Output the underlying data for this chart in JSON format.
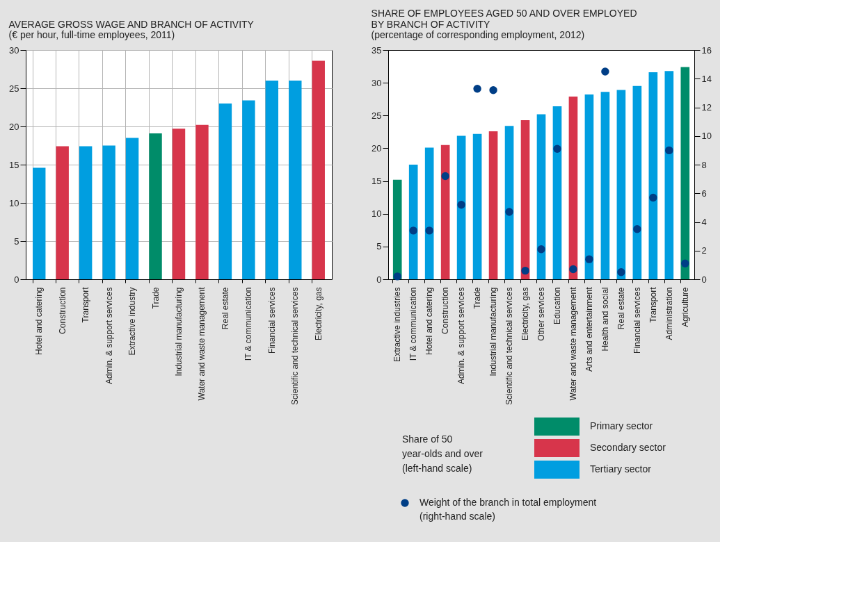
{
  "chart_data": [
    {
      "type": "bar",
      "title": "AVERAGE GROSS WAGE AND BRANCH OF ACTIVITY",
      "subtitle": "(€ per hour, full-time employees, 2011)",
      "categories": [
        "Hotel and catering",
        "Construction",
        "Transport",
        "Admin. & support services",
        "Extractive industry",
        "Trade",
        "Industrial manufacturing",
        "Water and waste management",
        "Real estate",
        "IT & communication",
        "Financial services",
        "Scientific and technical services",
        "Electricity, gas"
      ],
      "values": [
        14.6,
        17.4,
        17.4,
        17.5,
        18.5,
        19.1,
        19.7,
        20.2,
        23.0,
        23.4,
        26.0,
        26.0,
        28.6
      ],
      "colors": [
        "#009ee0",
        "#d7354b",
        "#009ee0",
        "#009ee0",
        "#009ee0",
        "#008c69",
        "#d7354b",
        "#d7354b",
        "#009ee0",
        "#009ee0",
        "#009ee0",
        "#009ee0",
        "#d7354b"
      ],
      "ylim": [
        0,
        30
      ],
      "yticks": [
        0,
        5,
        10,
        15,
        20,
        25,
        30
      ],
      "grid": true
    },
    {
      "type": "bar",
      "title": "SHARE OF EMPLOYEES AGED 50 AND OVER EMPLOYED BY BRANCH OF ACTIVITY",
      "subtitle": "(percentage of corresponding employment, 2012)",
      "categories": [
        "Extractive industries",
        "IT & communication",
        "Hotel and catering",
        "Construction",
        "Admin. & support services",
        "Trade",
        "Industrial manufacturing",
        "Scientific and technical services",
        "Electricity, gas",
        "Other services",
        "Education",
        "Water and waste management",
        "Arts and entertainment",
        "Health and social",
        "Real estate",
        "Financial services",
        "Transport",
        "Administration",
        "Agriculture"
      ],
      "legend_title": "Share of 50 year-olds and over (left-hand scale)",
      "series": [
        {
          "name": "Primary sector",
          "color": "#008c69",
          "values": [
            15.2,
            null,
            null,
            null,
            null,
            null,
            null,
            null,
            null,
            null,
            null,
            null,
            null,
            null,
            null,
            null,
            null,
            null,
            32.4
          ]
        },
        {
          "name": "Secondary sector",
          "color": "#d7354b",
          "values": [
            null,
            null,
            null,
            20.5,
            null,
            null,
            22.6,
            null,
            24.3,
            null,
            null,
            27.9,
            null,
            null,
            null,
            null,
            null,
            null,
            null
          ]
        },
        {
          "name": "Tertiary sector",
          "color": "#009ee0",
          "values": [
            null,
            17.5,
            20.1,
            null,
            21.9,
            22.2,
            null,
            23.4,
            null,
            25.2,
            26.4,
            null,
            28.2,
            28.6,
            28.9,
            29.5,
            31.6,
            31.8,
            null
          ]
        },
        {
          "name": "Weight of the branch in total employment (right-hand scale)",
          "type": "scatter",
          "axis": "y2",
          "marker": "circle",
          "color": "#003e86",
          "values": [
            0.2,
            3.4,
            3.4,
            7.2,
            5.2,
            13.3,
            13.2,
            4.7,
            0.6,
            2.1,
            9.1,
            0.7,
            1.4,
            14.5,
            0.5,
            3.5,
            5.7,
            9.0,
            1.1
          ]
        }
      ],
      "ylim": [
        0,
        35
      ],
      "yticks": [
        0,
        5,
        10,
        15,
        20,
        25,
        30,
        35
      ],
      "y2lim": [
        0,
        16
      ],
      "y2ticks": [
        0,
        2,
        4,
        6,
        8,
        10,
        12,
        14,
        16
      ],
      "legend": "bottom"
    }
  ]
}
